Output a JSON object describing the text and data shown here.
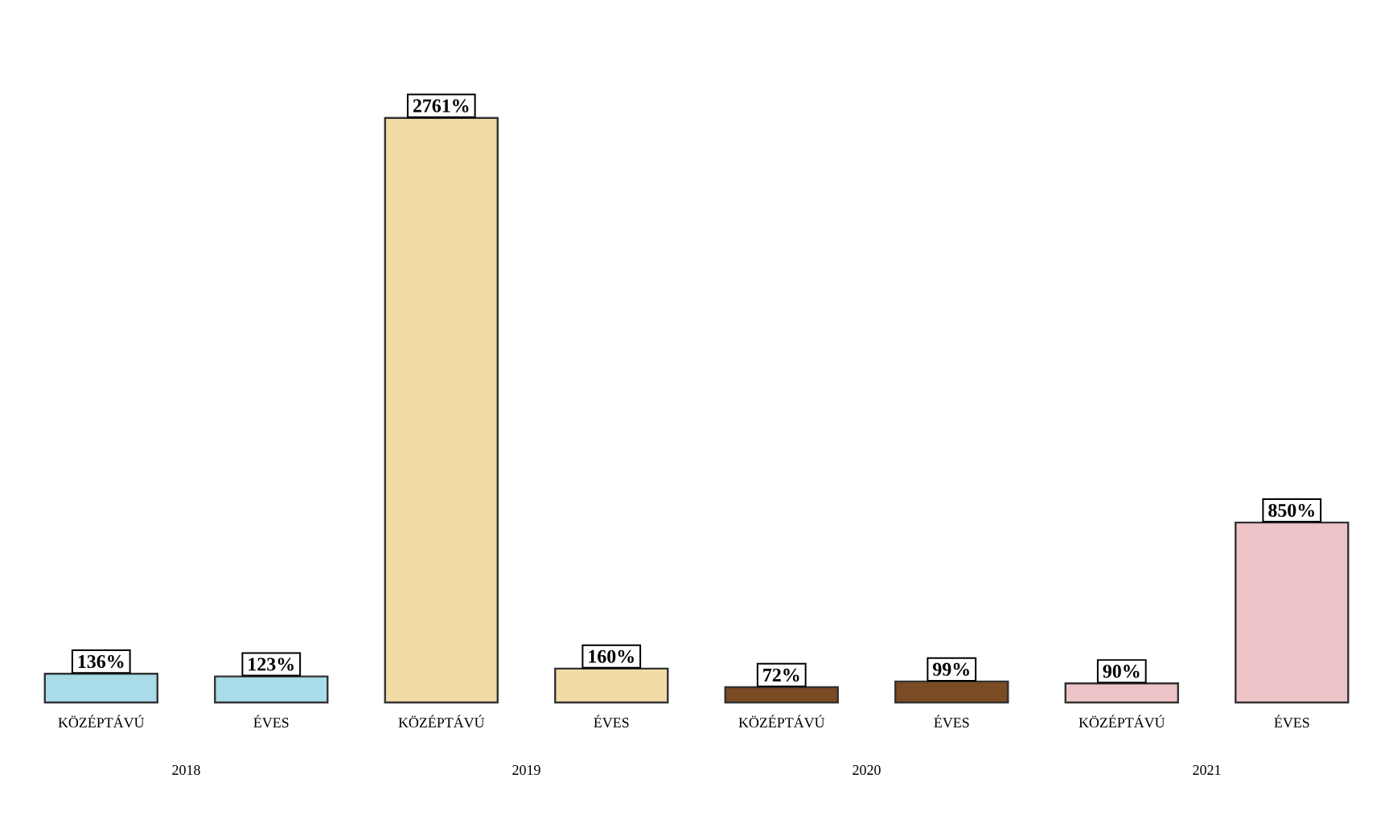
{
  "chart_data": {
    "type": "bar",
    "categories": [
      "KÖZÉPTÁVÚ",
      "ÉVES",
      "KÖZÉPTÁVÚ",
      "ÉVES",
      "KÖZÉPTÁVÚ",
      "ÉVES",
      "KÖZÉPTÁVÚ",
      "ÉVES"
    ],
    "values": [
      136,
      123,
      2761,
      160,
      72,
      99,
      90,
      850
    ],
    "value_labels": [
      "136%",
      "123%",
      "2761%",
      "160%",
      "72%",
      "99%",
      "90%",
      "850%"
    ],
    "colors": [
      "#a9dce8",
      "#a9dce8",
      "#f1dca6",
      "#f1dca6",
      "#7b4b24",
      "#7b4b24",
      "#eec4c8",
      "#eec4c8"
    ],
    "annotations": [
      "2018",
      "2019",
      "2020",
      "2021"
    ]
  }
}
